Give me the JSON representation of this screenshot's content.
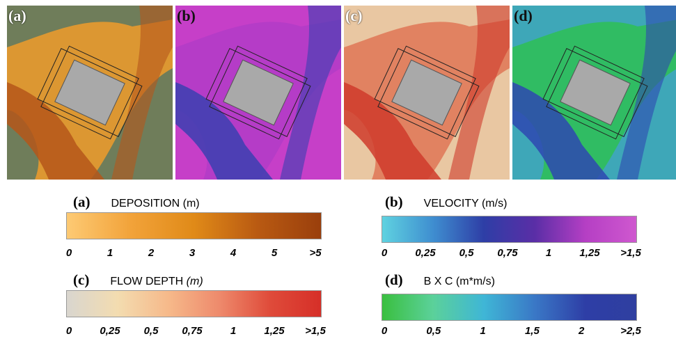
{
  "panels": [
    {
      "label": "(a)"
    },
    {
      "label": "(b)"
    },
    {
      "label": "(c)"
    },
    {
      "label": "(d)"
    }
  ],
  "legends": [
    {
      "label": "(a)",
      "title": "DEPOSITION",
      "unit": "(m)",
      "ticks": [
        "0",
        "1",
        "2",
        "3",
        "4",
        "5",
        ">5"
      ]
    },
    {
      "label": "(b)",
      "title": "VELOCITY",
      "unit": "(m/s)",
      "ticks": [
        "0",
        "0,25",
        "0,5",
        "0,75",
        "1",
        "1,25",
        ">1,5"
      ]
    },
    {
      "label": "(c)",
      "title": "FLOW DEPTH",
      "unit": "(m)",
      "ticks": [
        "0",
        "0,25",
        "0,5",
        "0,75",
        "1",
        "1,25",
        ">1,5"
      ]
    },
    {
      "label": "(d)",
      "title": "B X C",
      "unit": "(m*m/s)",
      "ticks": [
        "0",
        "0,5",
        "1",
        "1,5",
        "2",
        ">2,5"
      ]
    }
  ]
}
